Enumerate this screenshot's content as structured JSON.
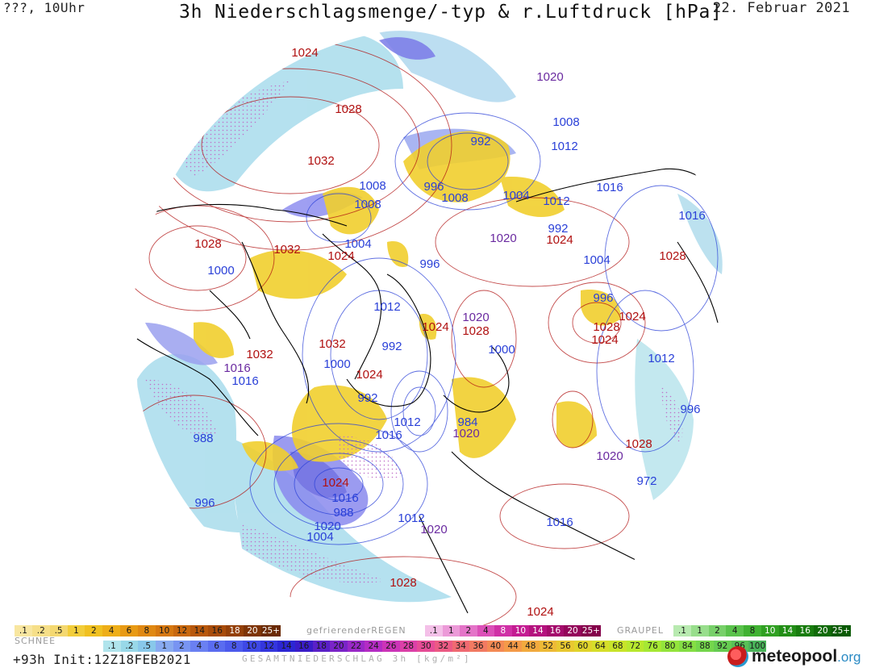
{
  "header": {
    "left": "???, 10Uhr",
    "title": "3h Niederschlagsmenge/-typ & r.Luftdruck [hPa]",
    "date": "22. Februar 2021"
  },
  "colors": {
    "high": "#b01010",
    "low": "#2a40d8",
    "mid": "#6a2aa0",
    "snow": "#f1cf2e",
    "rain": "#7070e8",
    "mixed": "#d070d0",
    "cyan": "#a8dcec",
    "coast": "#000000"
  },
  "isobar_labels": [
    {
      "text": "1024",
      "kind": "high"
    },
    {
      "text": "1028",
      "kind": "high"
    },
    {
      "text": "1032",
      "kind": "high"
    },
    {
      "text": "1020",
      "kind": "mid"
    },
    {
      "text": "1008",
      "kind": "low"
    },
    {
      "text": "992",
      "kind": "low"
    },
    {
      "text": "1012",
      "kind": "low"
    },
    {
      "text": "1008",
      "kind": "low"
    },
    {
      "text": "996",
      "kind": "low"
    },
    {
      "text": "1008",
      "kind": "low"
    },
    {
      "text": "1004",
      "kind": "low"
    },
    {
      "text": "1012",
      "kind": "low"
    },
    {
      "text": "1016",
      "kind": "low"
    },
    {
      "text": "1016",
      "kind": "low"
    },
    {
      "text": "1008",
      "kind": "low"
    },
    {
      "text": "992",
      "kind": "low"
    },
    {
      "text": "1020",
      "kind": "mid"
    },
    {
      "text": "1024",
      "kind": "high"
    },
    {
      "text": "1028",
      "kind": "high"
    },
    {
      "text": "1032",
      "kind": "high"
    },
    {
      "text": "1004",
      "kind": "low"
    },
    {
      "text": "1000",
      "kind": "low"
    },
    {
      "text": "1024",
      "kind": "high"
    },
    {
      "text": "996",
      "kind": "low"
    },
    {
      "text": "1004",
      "kind": "low"
    },
    {
      "text": "1028",
      "kind": "high"
    },
    {
      "text": "1012",
      "kind": "low"
    },
    {
      "text": "996",
      "kind": "low"
    },
    {
      "text": "1020",
      "kind": "mid"
    },
    {
      "text": "1024",
      "kind": "high"
    },
    {
      "text": "1028",
      "kind": "high"
    },
    {
      "text": "1028",
      "kind": "high"
    },
    {
      "text": "1024",
      "kind": "high"
    },
    {
      "text": "1032",
      "kind": "high"
    },
    {
      "text": "992",
      "kind": "low"
    },
    {
      "text": "1000",
      "kind": "low"
    },
    {
      "text": "1032",
      "kind": "high"
    },
    {
      "text": "1012",
      "kind": "low"
    },
    {
      "text": "1016",
      "kind": "mid"
    },
    {
      "text": "1000",
      "kind": "low"
    },
    {
      "text": "1016",
      "kind": "low"
    },
    {
      "text": "1024",
      "kind": "high"
    },
    {
      "text": "992",
      "kind": "low"
    },
    {
      "text": "996",
      "kind": "low"
    },
    {
      "text": "1012",
      "kind": "low"
    },
    {
      "text": "984",
      "kind": "low"
    },
    {
      "text": "1020",
      "kind": "mid"
    },
    {
      "text": "1016",
      "kind": "low"
    },
    {
      "text": "988",
      "kind": "low"
    },
    {
      "text": "1028",
      "kind": "high"
    },
    {
      "text": "1020",
      "kind": "mid"
    },
    {
      "text": "1024",
      "kind": "high"
    },
    {
      "text": "972",
      "kind": "low"
    },
    {
      "text": "1016",
      "kind": "low"
    },
    {
      "text": "988",
      "kind": "low"
    },
    {
      "text": "996",
      "kind": "low"
    },
    {
      "text": "1020",
      "kind": "low"
    },
    {
      "text": "1004",
      "kind": "low"
    },
    {
      "text": "1012",
      "kind": "low"
    },
    {
      "text": "1020",
      "kind": "mid"
    },
    {
      "text": "1016",
      "kind": "low"
    },
    {
      "text": "1028",
      "kind": "high"
    },
    {
      "text": "1024",
      "kind": "high"
    },
    {
      "text": "1024",
      "kind": "high"
    }
  ],
  "legend": {
    "snow_label": "SCHNEE",
    "snow_scale": [
      {
        "t": ".1",
        "c": "#f8e6a0"
      },
      {
        "t": ".2",
        "c": "#f6df88"
      },
      {
        "t": ".5",
        "c": "#f4d870"
      },
      {
        "t": "1",
        "c": "#f2cd3a"
      },
      {
        "t": "2",
        "c": "#f0c020"
      },
      {
        "t": "4",
        "c": "#eeae18"
      },
      {
        "t": "6",
        "c": "#e89a14"
      },
      {
        "t": "8",
        "c": "#e08812"
      },
      {
        "t": "10",
        "c": "#d67810"
      },
      {
        "t": "12",
        "c": "#c8680e"
      },
      {
        "t": "14",
        "c": "#b8580c"
      },
      {
        "t": "16",
        "c": "#a84c0a"
      },
      {
        "t": "18",
        "c": "#944008"
      },
      {
        "t": "20",
        "c": "#7e3406"
      },
      {
        "t": "25+",
        "c": "#6a2a04"
      }
    ],
    "frz_label": "gefrierenderREGEN",
    "frz_scale": [
      {
        "t": ".1",
        "c": "#f4c0e8"
      },
      {
        "t": "1",
        "c": "#ec9ad8"
      },
      {
        "t": "2",
        "c": "#e474c8"
      },
      {
        "t": "4",
        "c": "#dc50b8"
      },
      {
        "t": "8",
        "c": "#d030a6"
      },
      {
        "t": "10",
        "c": "#c41c92"
      },
      {
        "t": "14",
        "c": "#b4127e"
      },
      {
        "t": "16",
        "c": "#a40c6c"
      },
      {
        "t": "20",
        "c": "#94065a"
      },
      {
        "t": "25+",
        "c": "#84004a"
      }
    ],
    "graupel_label": "GRAUPEL",
    "graupel_scale": [
      {
        "t": ".1",
        "c": "#b8eab0"
      },
      {
        "t": "1",
        "c": "#98de8c"
      },
      {
        "t": "2",
        "c": "#78d06a"
      },
      {
        "t": "4",
        "c": "#5ac24c"
      },
      {
        "t": "8",
        "c": "#40b232"
      },
      {
        "t": "10",
        "c": "#30a022"
      },
      {
        "t": "14",
        "c": "#228e16"
      },
      {
        "t": "16",
        "c": "#187c0e"
      },
      {
        "t": "20",
        "c": "#106a08"
      },
      {
        "t": "25+",
        "c": "#0a5a04"
      }
    ],
    "total_label": "GESAMTNIEDERSCHLAG 3h [kg/m²]",
    "total_scale": [
      {
        "t": ".1",
        "c": "#b0e4ec"
      },
      {
        "t": ".2",
        "c": "#98d8e8"
      },
      {
        "t": ".5",
        "c": "#88c8ea"
      },
      {
        "t": "1",
        "c": "#88aaf0"
      },
      {
        "t": "2",
        "c": "#7894f2"
      },
      {
        "t": "4",
        "c": "#6a80f2"
      },
      {
        "t": "6",
        "c": "#5a6cf0"
      },
      {
        "t": "8",
        "c": "#4c5aec"
      },
      {
        "t": "10",
        "c": "#3e48e6"
      },
      {
        "t": "12",
        "c": "#3436de"
      },
      {
        "t": "14",
        "c": "#2c26d4"
      },
      {
        "t": "16",
        "c": "#3a1cc8"
      },
      {
        "t": "18",
        "c": "#5a20c8"
      },
      {
        "t": "20",
        "c": "#7a24c8"
      },
      {
        "t": "22",
        "c": "#9a28c8"
      },
      {
        "t": "24",
        "c": "#b42cc4"
      },
      {
        "t": "26",
        "c": "#cc34b8"
      },
      {
        "t": "28",
        "c": "#dc40a8"
      },
      {
        "t": "30",
        "c": "#e64c96"
      },
      {
        "t": "32",
        "c": "#ec5a84"
      },
      {
        "t": "34",
        "c": "#f06a72"
      },
      {
        "t": "36",
        "c": "#f27a62"
      },
      {
        "t": "40",
        "c": "#f48a54"
      },
      {
        "t": "44",
        "c": "#f49a48"
      },
      {
        "t": "48",
        "c": "#f2aa3e"
      },
      {
        "t": "52",
        "c": "#eeba36"
      },
      {
        "t": "56",
        "c": "#e8c830"
      },
      {
        "t": "60",
        "c": "#e0d42c"
      },
      {
        "t": "64",
        "c": "#d6de2a"
      },
      {
        "t": "68",
        "c": "#c8e42a"
      },
      {
        "t": "72",
        "c": "#b8e82e"
      },
      {
        "t": "76",
        "c": "#a6e834"
      },
      {
        "t": "80",
        "c": "#94e43c"
      },
      {
        "t": "84",
        "c": "#84de44"
      },
      {
        "t": "88",
        "c": "#74d64c"
      },
      {
        "t": "92",
        "c": "#66cc52"
      },
      {
        "t": "96",
        "c": "#58c056"
      },
      {
        "t": "100",
        "c": "#4ab45a"
      }
    ]
  },
  "footer": {
    "init": "+93h  Init:12Z18FEB2021",
    "brand_main": "meteopool",
    "brand_org": ".org"
  }
}
